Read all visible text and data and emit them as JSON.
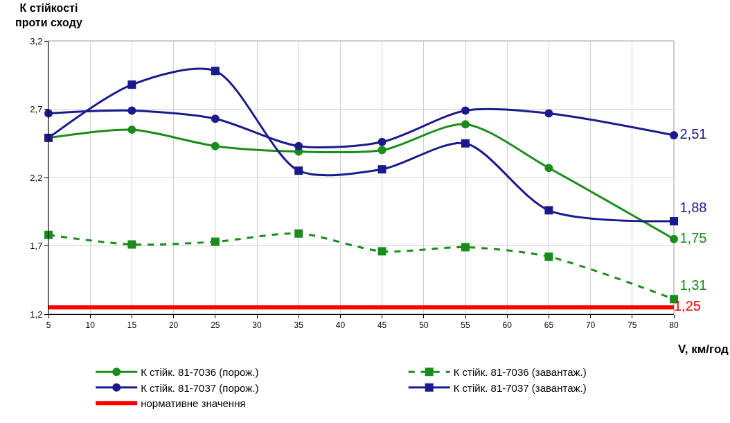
{
  "chart_data": {
    "type": "line",
    "xlabel": "V, км/год",
    "ylabel": "К стійкості\nпроти сходу",
    "x": [
      5,
      15,
      25,
      35,
      45,
      55,
      65,
      80
    ],
    "xlim": [
      5,
      80
    ],
    "xticks": [
      5,
      10,
      15,
      20,
      25,
      30,
      35,
      40,
      45,
      50,
      55,
      60,
      65,
      70,
      75,
      80
    ],
    "ylim": [
      1.2,
      3.2
    ],
    "yticks": [
      {
        "value": 1.2,
        "label": "1,2"
      },
      {
        "value": 1.7,
        "label": "1,7"
      },
      {
        "value": 2.2,
        "label": "2,2"
      },
      {
        "value": 2.7,
        "label": "2,7"
      },
      {
        "value": 3.2,
        "label": "3,2"
      }
    ],
    "grid": true,
    "legend": "bottom",
    "series": [
      {
        "name": "К стійк. 81-7036 (порож.)",
        "color": "#1a8c1a",
        "marker": "circle",
        "line_style": "solid",
        "values": [
          2.49,
          2.55,
          2.43,
          2.39,
          2.4,
          2.59,
          2.27,
          1.75
        ],
        "value_labels": [
          null,
          null,
          null,
          null,
          null,
          null,
          null,
          "1,75"
        ]
      },
      {
        "name": "К стійк. 81-7036 (завантаж.)",
        "color": "#1a8c1a",
        "marker": "square",
        "line_style": "dashed",
        "values": [
          1.78,
          1.71,
          1.73,
          1.79,
          1.66,
          1.69,
          1.62,
          1.31
        ],
        "value_labels": [
          null,
          null,
          null,
          null,
          null,
          null,
          null,
          "1,31"
        ]
      },
      {
        "name": "К стійк. 81-7037 (порож.)",
        "color": "#1a1a8c",
        "marker": "circle",
        "line_style": "solid",
        "values": [
          2.67,
          2.69,
          2.63,
          2.43,
          2.46,
          2.69,
          2.67,
          2.51
        ],
        "value_labels": [
          null,
          null,
          null,
          null,
          null,
          null,
          null,
          "2,51"
        ]
      },
      {
        "name": "К стійк. 81-7037 (завантаж.)",
        "color": "#1a1a8c",
        "marker": "square",
        "line_style": "solid",
        "values": [
          2.49,
          2.88,
          2.98,
          2.25,
          2.26,
          2.45,
          1.96,
          1.88
        ],
        "value_labels": [
          null,
          null,
          null,
          null,
          null,
          null,
          null,
          "1,88"
        ]
      },
      {
        "name": "нормативне значення",
        "color": "#ff0000",
        "marker": "none",
        "line_style": "solid",
        "x": [
          5,
          80
        ],
        "values": [
          1.25,
          1.25
        ],
        "value_labels": [
          null,
          "1,25"
        ]
      }
    ]
  }
}
